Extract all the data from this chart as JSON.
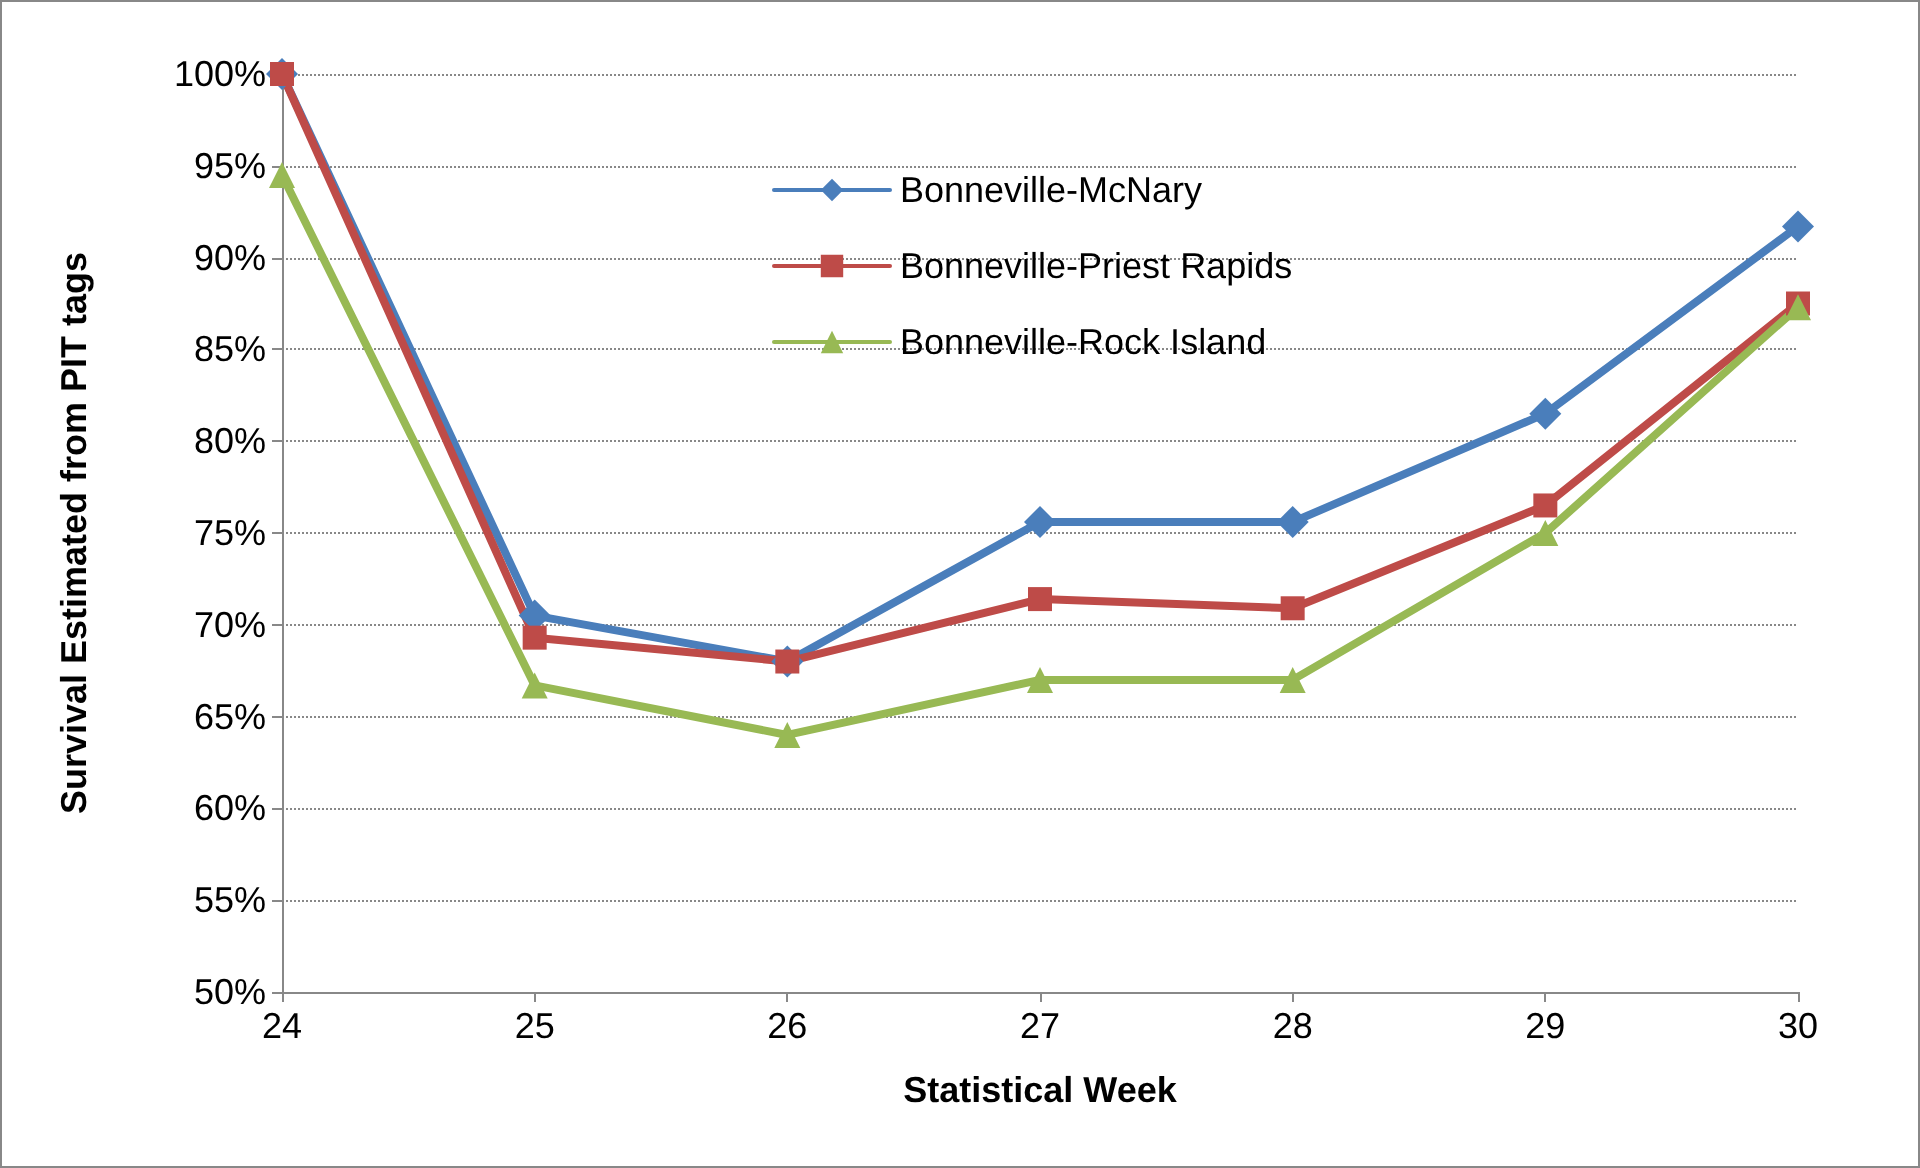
{
  "chart_data": {
    "type": "line",
    "xlabel": "Statistical Week",
    "ylabel": "Survival Estimated from PIT tags",
    "x": [
      24,
      25,
      26,
      27,
      28,
      29,
      30
    ],
    "series": [
      {
        "name": "Bonneville-McNary",
        "color": "#4a7ebb",
        "marker": "diamond",
        "values": [
          100,
          70.5,
          68,
          75.6,
          75.6,
          81.5,
          91.7
        ]
      },
      {
        "name": "Bonneville-Priest Rapids",
        "color": "#be4b48",
        "marker": "square",
        "values": [
          100,
          69.3,
          68,
          71.4,
          70.9,
          76.5,
          87.5
        ]
      },
      {
        "name": "Bonneville-Rock Island",
        "color": "#98b954",
        "marker": "triangle",
        "values": [
          94.5,
          66.7,
          64,
          67,
          67,
          75,
          87.3
        ]
      }
    ],
    "xlim": [
      24,
      30
    ],
    "xticks": [
      24,
      25,
      26,
      27,
      28,
      29,
      30
    ],
    "ylim": [
      50,
      100
    ],
    "yticks": [
      {
        "value": 50,
        "label": "50%"
      },
      {
        "value": 55,
        "label": "55%"
      },
      {
        "value": 60,
        "label": "60%"
      },
      {
        "value": 65,
        "label": "65%"
      },
      {
        "value": 70,
        "label": "70%"
      },
      {
        "value": 75,
        "label": "75%"
      },
      {
        "value": 80,
        "label": "80%"
      },
      {
        "value": 85,
        "label": "85%"
      },
      {
        "value": 90,
        "label": "90%"
      },
      {
        "value": 95,
        "label": "95%"
      },
      {
        "value": 100,
        "label": "100%"
      }
    ],
    "grid": "y",
    "legend": "top",
    "line_style": "solid"
  }
}
